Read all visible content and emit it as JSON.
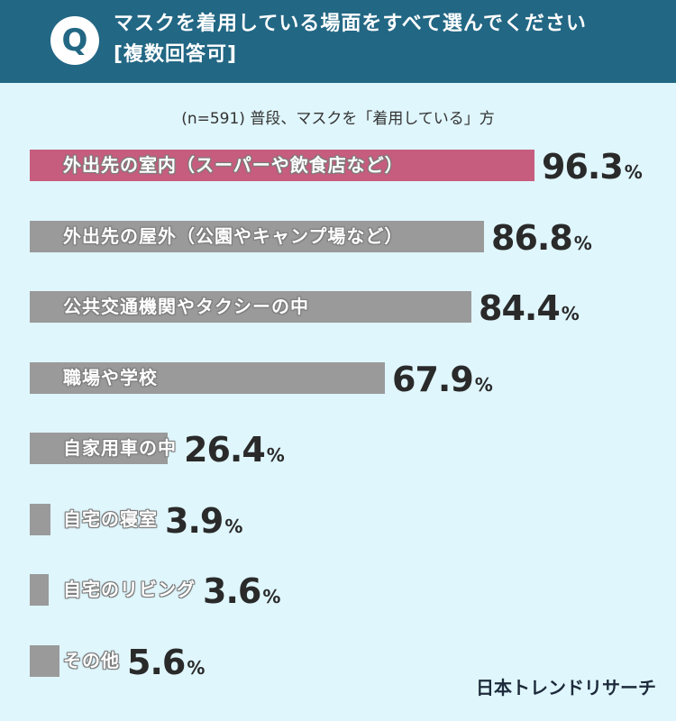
{
  "header": {
    "badge": "Q",
    "question_line1": "マスクを着用している場面をすべて選んでください",
    "question_line2": "[複数回答可]"
  },
  "subtitle": "(n=591) 普段、マスクを「着用している」方",
  "brand": "日本トレンドリサーチ",
  "colors": {
    "header_bg": "#226784",
    "background": "#dff6fc",
    "highlight_bar": "#c75d7e",
    "normal_bar": "#9a9a9a"
  },
  "chart_data": {
    "type": "bar",
    "orientation": "horizontal",
    "unit": "%",
    "xlim": [
      0,
      100
    ],
    "grid": false,
    "categories": [
      "外出先の室内（スーパーや飲食店など）",
      "外出先の屋外（公園やキャンプ場など）",
      "公共交通機関やタクシーの中",
      "職場や学校",
      "自家用車の中",
      "自宅の寝室",
      "自宅のリビング",
      "その他"
    ],
    "values": [
      96.3,
      86.8,
      84.4,
      67.9,
      26.4,
      3.9,
      3.6,
      5.6
    ],
    "value_labels": [
      "96.3",
      "86.8",
      "84.4",
      "67.9",
      "26.4",
      "3.9",
      "3.6",
      "5.6"
    ],
    "highlight_index": 0
  }
}
